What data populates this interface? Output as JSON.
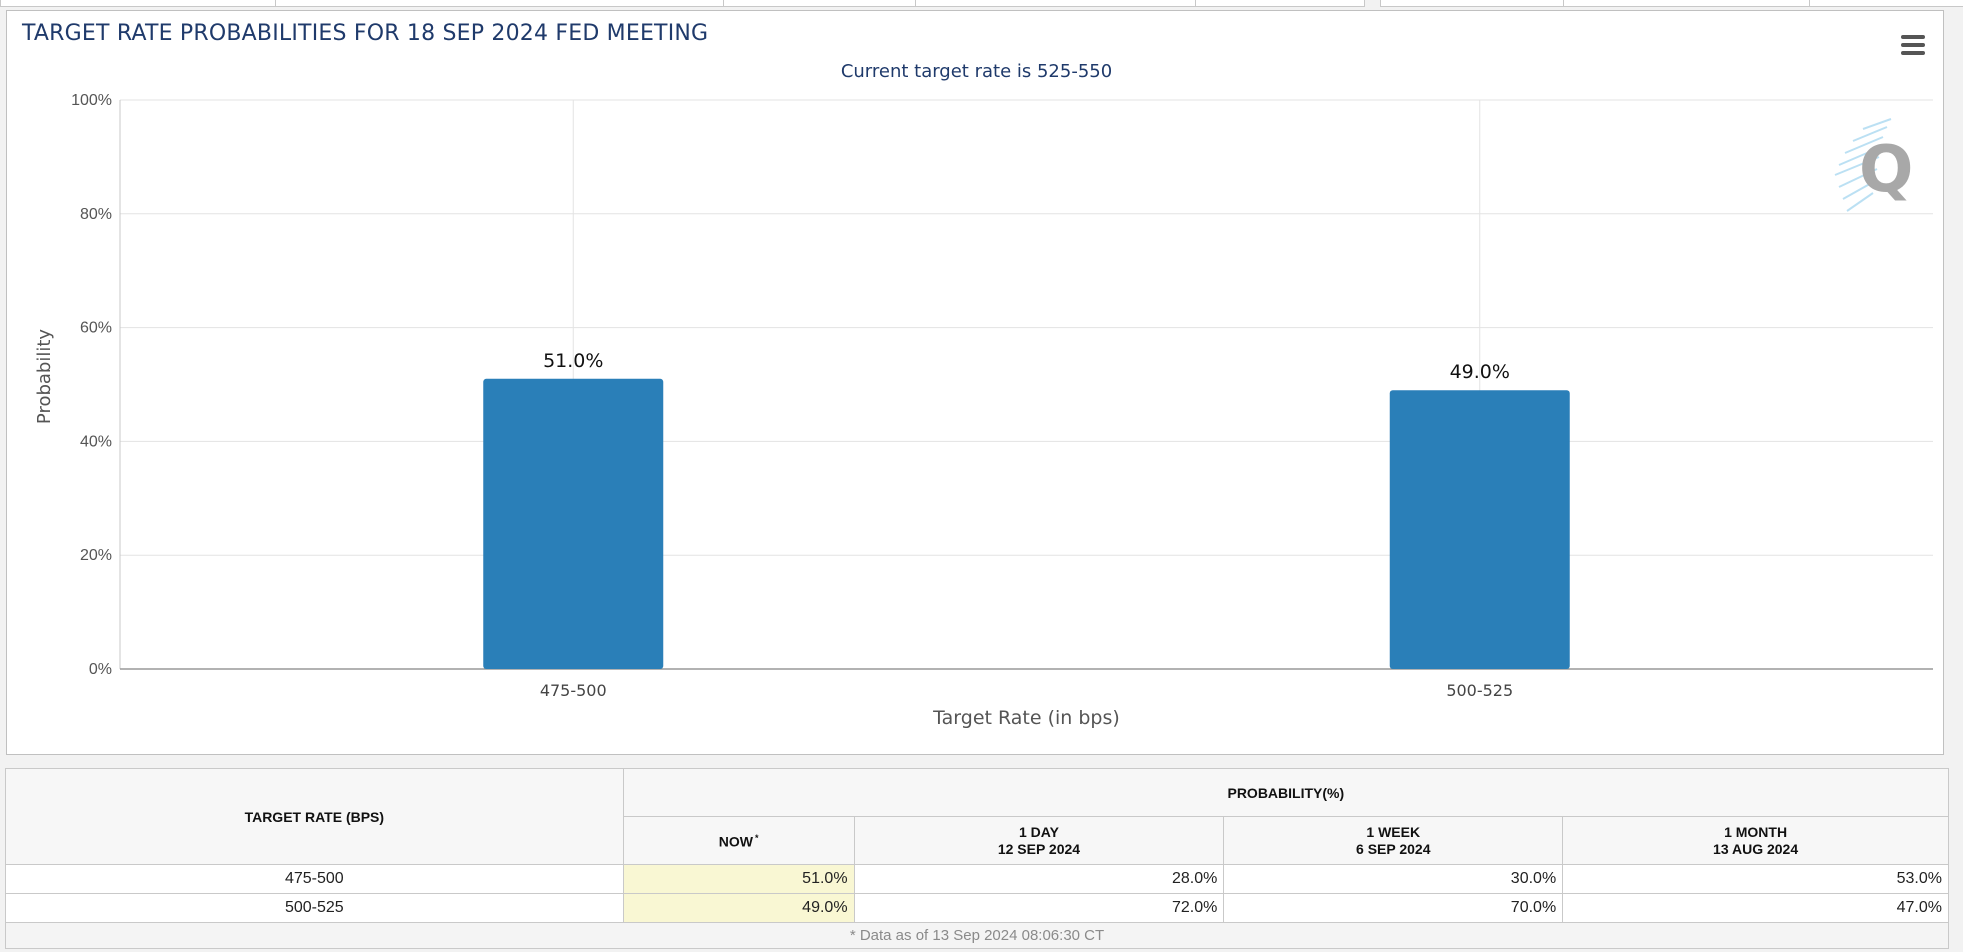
{
  "chart_panel": {
    "title": "TARGET RATE PROBABILITIES FOR 18 SEP 2024 FED MEETING",
    "menu_icon": "hamburger-menu-icon",
    "watermark_icon": "q-logo-icon"
  },
  "chart_data": {
    "type": "bar",
    "title": "TARGET RATE PROBABILITIES FOR 18 SEP 2024 FED MEETING",
    "subtitle": "Current target rate is 525-550",
    "categories": [
      "475-500",
      "500-525"
    ],
    "values": [
      51.0,
      49.0
    ],
    "data_labels": [
      "51.0%",
      "49.0%"
    ],
    "xlabel": "Target Rate (in bps)",
    "ylabel": "Probability",
    "ylim": [
      0,
      100
    ],
    "y_ticks": [
      "0%",
      "20%",
      "40%",
      "60%",
      "80%",
      "100%"
    ],
    "y_tick_values": [
      0,
      20,
      40,
      60,
      80,
      100
    ],
    "grid": true,
    "bar_color": "#2a7fb8"
  },
  "table": {
    "header_rate": "TARGET RATE (BPS)",
    "header_probability": "PROBABILITY(%)",
    "columns": [
      {
        "line1": "NOW",
        "line2": "",
        "star": "*"
      },
      {
        "line1": "1 DAY",
        "line2": "12 SEP 2024",
        "star": ""
      },
      {
        "line1": "1 WEEK",
        "line2": "6 SEP 2024",
        "star": ""
      },
      {
        "line1": "1 MONTH",
        "line2": "13 AUG 2024",
        "star": ""
      }
    ],
    "rows": [
      {
        "rate": "475-500",
        "values": [
          "51.0%",
          "28.0%",
          "30.0%",
          "53.0%"
        ]
      },
      {
        "rate": "500-525",
        "values": [
          "49.0%",
          "72.0%",
          "70.0%",
          "47.0%"
        ]
      }
    ],
    "footnote": "* Data as of 13 Sep 2024 08:06:30 CT",
    "now_highlight_color": "#f9f7d3"
  }
}
